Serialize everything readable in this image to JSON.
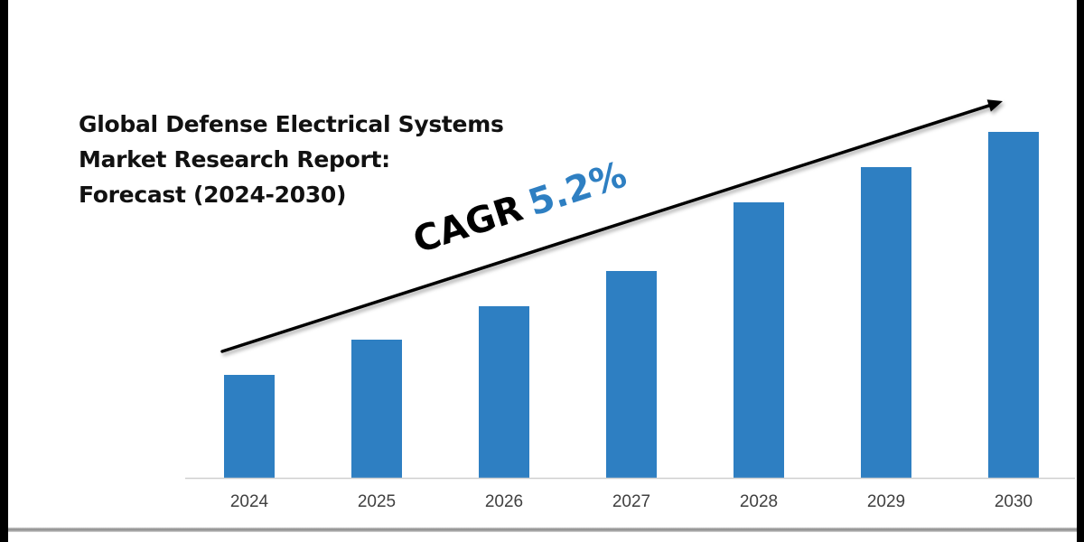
{
  "chart_data": {
    "type": "bar",
    "title": "Global Defense Electrical Systems Market Research Report: Forecast (2024-2030)",
    "title_lines": [
      "Global Defense Electrical Systems",
      "Market Research Report:",
      "Forecast (2024-2030)"
    ],
    "categories": [
      "2024",
      "2025",
      "2026",
      "2027",
      "2028",
      "2029",
      "2030"
    ],
    "values": [
      114,
      153,
      190,
      229,
      305,
      344,
      383
    ],
    "values_note": "relative bar heights (no y-axis shown)",
    "xlabel": "",
    "ylabel": "",
    "ylim": [
      0,
      400
    ],
    "grid": false,
    "legend": "none",
    "bar_color": "#2e7fc2",
    "annotation": {
      "label": "CAGR",
      "value": "5.2%",
      "value_color": "#2e7fc2",
      "arrow": "trend arrow rising from 2024 to 2030"
    }
  }
}
